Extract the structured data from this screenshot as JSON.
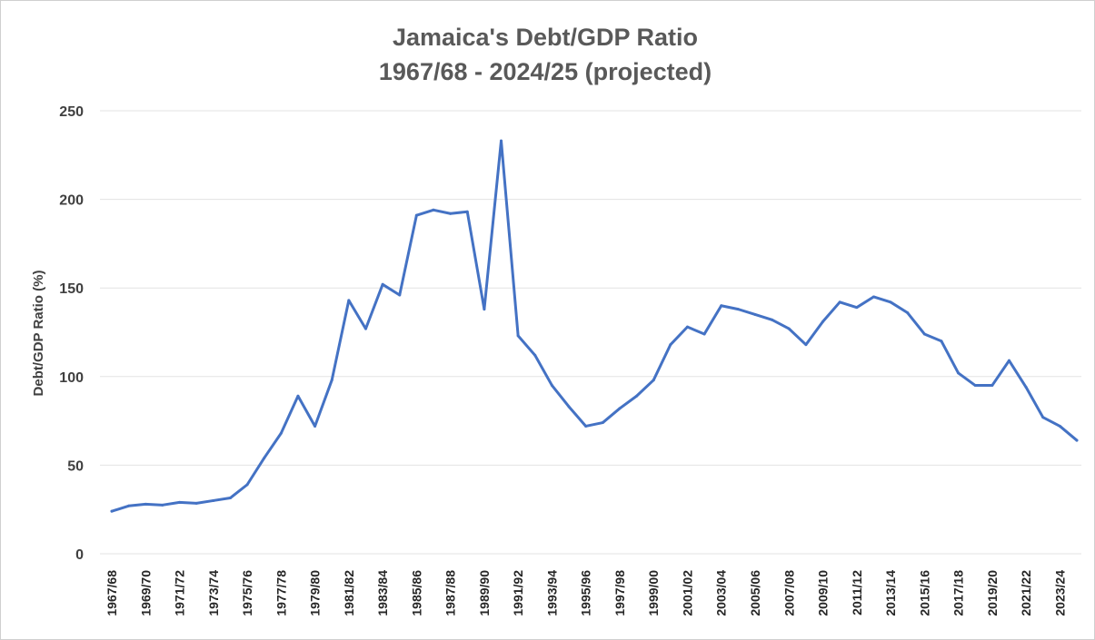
{
  "chart_data": {
    "type": "line",
    "title": "Jamaica's Debt/GDP Ratio",
    "subtitle": "1967/68 - 2024/25 (projected)",
    "xlabel": "",
    "ylabel": "Debt/GDP Ratio (%)",
    "ylim": [
      0,
      250
    ],
    "yticks": [
      0,
      50,
      100,
      150,
      200,
      250
    ],
    "grid": true,
    "legend": "none",
    "line_color": "#4472C4",
    "categories": [
      "1967/68",
      "1968/69",
      "1969/70",
      "1970/71",
      "1971/72",
      "1972/73",
      "1973/74",
      "1974/75",
      "1975/76",
      "1976/77",
      "1977/78",
      "1978/79",
      "1979/80",
      "1980/81",
      "1981/82",
      "1982/83",
      "1983/84",
      "1984/85",
      "1985/86",
      "1986/87",
      "1987/88",
      "1988/89",
      "1989/90",
      "1990/91",
      "1991/92",
      "1992/93",
      "1993/94",
      "1994/95",
      "1995/96",
      "1996/97",
      "1997/98",
      "1998/99",
      "1999/00",
      "2000/01",
      "2001/02",
      "2002/03",
      "2003/04",
      "2004/05",
      "2005/06",
      "2006/07",
      "2007/08",
      "2008/09",
      "2009/10",
      "2010/11",
      "2011/12",
      "2012/13",
      "2013/14",
      "2014/15",
      "2015/16",
      "2016/17",
      "2017/18",
      "2018/19",
      "2019/20",
      "2020/21",
      "2021/22",
      "2022/23",
      "2023/24",
      "2024/25"
    ],
    "tick_labels": [
      "1967/68",
      "1969/70",
      "1971/72",
      "1973/74",
      "1975/76",
      "1977/78",
      "1979/80",
      "1981/82",
      "1983/84",
      "1985/86",
      "1987/88",
      "1989/90",
      "1991/92",
      "1993/94",
      "1995/96",
      "1997/98",
      "1999/00",
      "2001/02",
      "2003/04",
      "2005/06",
      "2007/08",
      "2009/10",
      "2011/12",
      "2013/14",
      "2015/16",
      "2017/18",
      "2019/20",
      "2021/22",
      "2023/24"
    ],
    "series": [
      {
        "values": [
          24,
          27,
          28,
          27.5,
          29,
          28.5,
          30,
          31.5,
          39,
          54,
          68,
          89,
          72,
          98,
          143,
          127,
          152,
          146,
          191,
          194,
          192,
          193,
          138,
          233,
          123,
          112,
          95,
          83,
          72,
          74,
          82,
          89,
          98,
          118,
          128,
          124,
          140,
          138,
          135,
          132,
          127,
          118,
          131,
          142,
          139,
          145,
          142,
          136,
          124,
          120,
          102,
          95,
          95,
          109,
          94,
          77,
          72,
          64
        ]
      }
    ]
  }
}
